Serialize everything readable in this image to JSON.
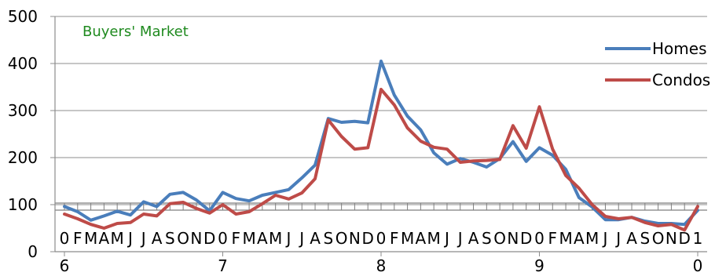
{
  "chart_data": {
    "type": "line",
    "title": "",
    "xlabel": "",
    "ylabel": "",
    "ylim": [
      0,
      500
    ],
    "yticks": [
      0,
      100,
      200,
      300,
      400,
      500
    ],
    "grid": true,
    "reference_line": 100,
    "legend_placement": "right",
    "annotation": {
      "text": "Buyers' Market",
      "color": "#1f8a1f"
    },
    "year_ticks": [
      "6",
      "7",
      "8",
      "9",
      "0"
    ],
    "month_labels": [
      "0",
      "F",
      "M",
      "A",
      "M",
      "J",
      "J",
      "A",
      "S",
      "O",
      "N",
      "D",
      "0",
      "F",
      "M",
      "A",
      "M",
      "J",
      "J",
      "A",
      "S",
      "O",
      "N",
      "D",
      "0",
      "F",
      "M",
      "A",
      "M",
      "J",
      "J",
      "A",
      "S",
      "O",
      "N",
      "D",
      "0",
      "F",
      "M",
      "A",
      "M",
      "J",
      "J",
      "A",
      "S",
      "O",
      "N",
      "D",
      "1"
    ],
    "series": [
      {
        "name": "Homes",
        "color": "#4a7ebb",
        "values": [
          96,
          85,
          67,
          76,
          86,
          78,
          106,
          96,
          122,
          126,
          110,
          87,
          126,
          113,
          108,
          120,
          126,
          132,
          157,
          184,
          283,
          275,
          277,
          274,
          405,
          333,
          288,
          259,
          210,
          186,
          198,
          190,
          180,
          198,
          234,
          192,
          221,
          205,
          175,
          115,
          95,
          68,
          68,
          73,
          65,
          60,
          60,
          58,
          88
        ]
      },
      {
        "name": "Condos",
        "color": "#be4b48",
        "values": [
          80,
          70,
          58,
          50,
          60,
          62,
          80,
          76,
          102,
          105,
          92,
          82,
          100,
          80,
          85,
          102,
          120,
          112,
          125,
          155,
          280,
          245,
          218,
          221,
          345,
          312,
          263,
          235,
          222,
          218,
          190,
          193,
          194,
          196,
          268,
          220,
          308,
          218,
          162,
          135,
          100,
          75,
          70,
          73,
          62,
          55,
          58,
          46,
          96
        ]
      }
    ]
  }
}
